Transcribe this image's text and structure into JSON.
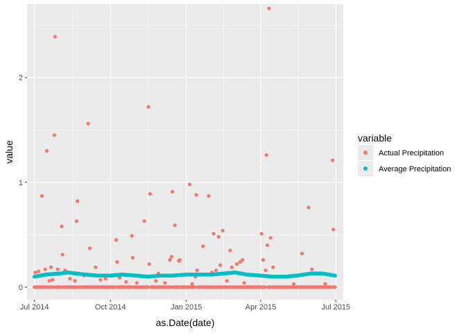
{
  "chart_data": {
    "type": "scatter",
    "xlabel": "as.Date(date)",
    "ylabel": "value",
    "xlim": [
      "2014-06-22",
      "2015-07-10"
    ],
    "ylim": [
      -0.12,
      2.7
    ],
    "x_ticks": [
      {
        "date": "2014-07-01",
        "label": "Jul 2014"
      },
      {
        "date": "2014-10-01",
        "label": "Oct 2014"
      },
      {
        "date": "2015-01-01",
        "label": "Jan 2015"
      },
      {
        "date": "2015-04-01",
        "label": "Apr 2015"
      },
      {
        "date": "2015-07-01",
        "label": "Jul 2015"
      }
    ],
    "y_ticks": [
      0,
      1,
      2
    ],
    "grid": true,
    "legend": {
      "title": "variable",
      "position": "right",
      "entries": [
        "Actual Precipitation",
        "Average Precipitation"
      ]
    },
    "colors": {
      "Actual Precipitation": "#F8766D",
      "Average Precipitation": "#00BFC4",
      "panel": "#EBEBEB",
      "grid": "#FFFFFF"
    },
    "series": [
      {
        "name": "Actual Precipitation",
        "points": [
          [
            "2014-07-02",
            0.14
          ],
          [
            "2014-07-06",
            0.15
          ],
          [
            "2014-07-10",
            0.87
          ],
          [
            "2014-07-14",
            0.17
          ],
          [
            "2014-07-16",
            1.3
          ],
          [
            "2014-07-19",
            0.06
          ],
          [
            "2014-07-21",
            0.19
          ],
          [
            "2014-07-23",
            0.07
          ],
          [
            "2014-07-25",
            1.45
          ],
          [
            "2014-07-26",
            2.39
          ],
          [
            "2014-07-29",
            0.17
          ],
          [
            "2014-08-03",
            0.58
          ],
          [
            "2014-08-04",
            0.31
          ],
          [
            "2014-08-07",
            0.16
          ],
          [
            "2014-08-13",
            0.08
          ],
          [
            "2014-08-19",
            0.06
          ],
          [
            "2014-08-21",
            0.63
          ],
          [
            "2014-08-22",
            0.82
          ],
          [
            "2014-08-30",
            0.11
          ],
          [
            "2014-09-04",
            1.56
          ],
          [
            "2014-09-06",
            0.37
          ],
          [
            "2014-09-13",
            0.19
          ],
          [
            "2014-09-19",
            0.07
          ],
          [
            "2014-09-25",
            0.08
          ],
          [
            "2014-10-08",
            0.45
          ],
          [
            "2014-10-09",
            0.24
          ],
          [
            "2014-10-12",
            0.09
          ],
          [
            "2014-10-20",
            0.05
          ],
          [
            "2014-10-27",
            0.49
          ],
          [
            "2014-10-28",
            0.28
          ],
          [
            "2014-11-02",
            0.04
          ],
          [
            "2014-11-11",
            0.63
          ],
          [
            "2014-11-16",
            1.72
          ],
          [
            "2014-11-18",
            0.89
          ],
          [
            "2014-11-17",
            0.22
          ],
          [
            "2014-11-25",
            0.06
          ],
          [
            "2014-11-28",
            0.13
          ],
          [
            "2014-12-06",
            0.04
          ],
          [
            "2014-12-12",
            0.26
          ],
          [
            "2014-12-14",
            0.29
          ],
          [
            "2014-12-15",
            0.91
          ],
          [
            "2014-12-18",
            0.59
          ],
          [
            "2014-12-23",
            0.25
          ],
          [
            "2014-12-24",
            0.26
          ],
          [
            "2015-01-05",
            0.98
          ],
          [
            "2015-01-08",
            0.03
          ],
          [
            "2015-01-12",
            0.1
          ],
          [
            "2015-01-13",
            0.88
          ],
          [
            "2015-01-14",
            0.16
          ],
          [
            "2015-01-21",
            0.39
          ],
          [
            "2015-01-28",
            0.87
          ],
          [
            "2015-02-01",
            0.14
          ],
          [
            "2015-02-03",
            0.51
          ],
          [
            "2015-02-06",
            0.16
          ],
          [
            "2015-02-09",
            0.48
          ],
          [
            "2015-02-11",
            0.21
          ],
          [
            "2015-02-14",
            0.54
          ],
          [
            "2015-02-19",
            0.06
          ],
          [
            "2015-02-23",
            0.35
          ],
          [
            "2015-02-25",
            0.19
          ],
          [
            "2015-03-03",
            0.22
          ],
          [
            "2015-03-07",
            0.24
          ],
          [
            "2015-03-10",
            0.26
          ],
          [
            "2015-03-12",
            0.04
          ],
          [
            "2015-04-02",
            0.51
          ],
          [
            "2015-04-04",
            0.26
          ],
          [
            "2015-04-07",
            0.16
          ],
          [
            "2015-04-08",
            1.26
          ],
          [
            "2015-04-09",
            0.4
          ],
          [
            "2015-04-11",
            2.66
          ],
          [
            "2015-04-13",
            0.47
          ],
          [
            "2015-04-16",
            0.19
          ],
          [
            "2015-05-21",
            0.32
          ],
          [
            "2015-05-29",
            0.76
          ],
          [
            "2015-06-02",
            0.17
          ],
          [
            "2015-06-10",
            0.13
          ],
          [
            "2015-06-27",
            1.21
          ],
          [
            "2015-06-28",
            0.55
          ],
          [
            "2015-06-18",
            0.03
          ],
          [
            "2015-05-11",
            0.03
          ]
        ]
      },
      {
        "name": "Average Precipitation",
        "seasonal": {
          "start": "2014-07-01",
          "end": "2015-06-30",
          "knots": [
            [
              "2014-07-01",
              0.1
            ],
            [
              "2014-07-15",
              0.12
            ],
            [
              "2014-08-01",
              0.13
            ],
            [
              "2014-08-10",
              0.14
            ],
            [
              "2014-08-20",
              0.13
            ],
            [
              "2014-09-01",
              0.12
            ],
            [
              "2014-09-15",
              0.11
            ],
            [
              "2014-10-01",
              0.11
            ],
            [
              "2014-10-15",
              0.12
            ],
            [
              "2014-11-01",
              0.11
            ],
            [
              "2014-11-15",
              0.1
            ],
            [
              "2014-12-01",
              0.11
            ],
            [
              "2014-12-15",
              0.11
            ],
            [
              "2015-01-01",
              0.12
            ],
            [
              "2015-01-15",
              0.12
            ],
            [
              "2015-02-01",
              0.12
            ],
            [
              "2015-02-15",
              0.13
            ],
            [
              "2015-03-01",
              0.14
            ],
            [
              "2015-03-15",
              0.12
            ],
            [
              "2015-04-01",
              0.11
            ],
            [
              "2015-04-15",
              0.1
            ],
            [
              "2015-05-01",
              0.1
            ],
            [
              "2015-05-15",
              0.11
            ],
            [
              "2015-06-01",
              0.13
            ],
            [
              "2015-06-15",
              0.13
            ],
            [
              "2015-06-30",
              0.11
            ]
          ]
        }
      }
    ],
    "zero_days_note": "Actual Precipitation is 0 on most remaining days of the period"
  }
}
